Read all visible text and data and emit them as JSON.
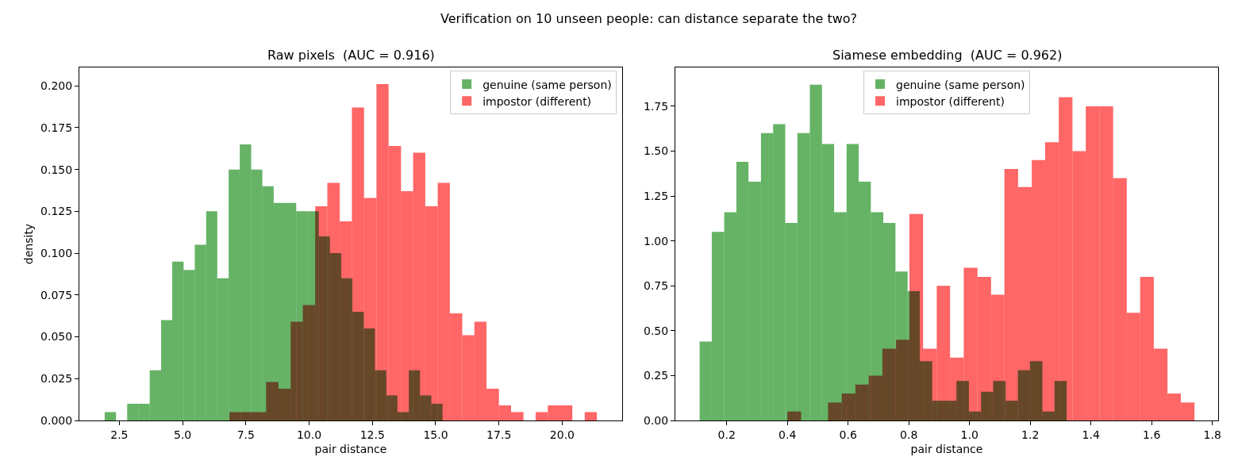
{
  "chart_data": [
    {
      "type": "histogram",
      "title": "Raw pixels  (AUC = 0.916)",
      "xlabel": "pair distance",
      "ylabel": "density",
      "annotations": [
        "Verification on 10 unseen people: can distance separate the two?"
      ],
      "bins": [
        1.92,
        2.37,
        2.81,
        3.26,
        3.7,
        4.15,
        4.59,
        5.04,
        5.48,
        5.93,
        6.37,
        6.82,
        7.26,
        7.71,
        8.15,
        8.6,
        9.04,
        9.49,
        9.93,
        10.38,
        10.82,
        11.27,
        11.71,
        12.16,
        12.6,
        13.05,
        13.49,
        13.94,
        14.38,
        14.83,
        15.27
      ],
      "series": [
        {
          "name": "genuine (same person)",
          "color": "#66b366",
          "values": [
            0.005,
            0,
            0.01,
            0.01,
            0.03,
            0.06,
            0.095,
            0.09,
            0.105,
            0.125,
            0.085,
            0.15,
            0.165,
            0.15,
            0.14,
            0.13,
            0.13,
            0.125,
            0.125,
            0.11,
            0.1,
            0.085,
            0.065,
            0.055,
            0.03,
            0.015,
            0.005,
            0.03,
            0.015,
            0.01
          ]
        },
        {
          "name": "impostor (different)",
          "color": "#ff6666",
          "bins": [
            6.85,
            7.33,
            7.82,
            8.3,
            8.79,
            9.27,
            9.75,
            10.24,
            10.72,
            11.21,
            11.69,
            12.17,
            12.66,
            13.14,
            13.63,
            14.11,
            14.59,
            15.08,
            15.56,
            16.05,
            16.53,
            17.01,
            17.5,
            17.98,
            18.47,
            18.95,
            19.43,
            19.92,
            20.4,
            20.89,
            21.37
          ],
          "values": [
            0.005,
            0.005,
            0.005,
            0.023,
            0.019,
            0.059,
            0.069,
            0.128,
            0.142,
            0.119,
            0.187,
            0.133,
            0.201,
            0.164,
            0.137,
            0.16,
            0.128,
            0.142,
            0.064,
            0.051,
            0.059,
            0.019,
            0.009,
            0.005,
            0,
            0.005,
            0.009,
            0.009,
            0,
            0.005
          ]
        }
      ],
      "xlim": [
        0.92,
        22.37
      ],
      "ylim": [
        0,
        0.211
      ],
      "xticks": [
        {
          "value": 2.5,
          "label": "2.5"
        },
        {
          "value": 5,
          "label": "5.0"
        },
        {
          "value": 7.5,
          "label": "7.5"
        },
        {
          "value": 10,
          "label": "10.0"
        },
        {
          "value": 12.5,
          "label": "12.5"
        },
        {
          "value": 15,
          "label": "15.0"
        },
        {
          "value": 17.5,
          "label": "17.5"
        },
        {
          "value": 20,
          "label": "20.0"
        }
      ],
      "yticks": [
        {
          "value": 0,
          "label": "0.000"
        },
        {
          "value": 0.025,
          "label": "0.025"
        },
        {
          "value": 0.05,
          "label": "0.050"
        },
        {
          "value": 0.075,
          "label": "0.075"
        },
        {
          "value": 0.1,
          "label": "0.100"
        },
        {
          "value": 0.125,
          "label": "0.125"
        },
        {
          "value": 0.15,
          "label": "0.150"
        },
        {
          "value": 0.175,
          "label": "0.175"
        },
        {
          "value": 0.2,
          "label": "0.200"
        }
      ],
      "grid": false,
      "legend": "top right"
    },
    {
      "type": "histogram",
      "title": "Siamese embedding  (AUC = 0.962)",
      "xlabel": "pair distance",
      "bins": [
        0.111,
        0.151,
        0.192,
        0.232,
        0.272,
        0.313,
        0.353,
        0.393,
        0.433,
        0.474,
        0.514,
        0.554,
        0.595,
        0.635,
        0.675,
        0.716,
        0.756,
        0.796,
        0.836,
        0.877,
        0.917,
        0.957,
        0.998,
        1.038,
        1.078,
        1.119,
        1.159,
        1.199,
        1.24,
        1.28,
        1.32
      ],
      "series": [
        {
          "name": "genuine (same person)",
          "color": "#66b366",
          "values": [
            0.44,
            1.05,
            1.16,
            1.44,
            1.33,
            1.6,
            1.65,
            1.1,
            1.6,
            1.87,
            1.54,
            1.16,
            1.54,
            1.33,
            1.16,
            1.1,
            0.83,
            0.72,
            0.33,
            0.11,
            0.11,
            0.22,
            0.05,
            0.16,
            0.22,
            0.11,
            0.28,
            0.33,
            0.05,
            0.22
          ]
        },
        {
          "name": "impostor (different)",
          "color": "#ff6666",
          "bins": [
            0.4,
            0.445,
            0.489,
            0.534,
            0.579,
            0.624,
            0.668,
            0.713,
            0.758,
            0.802,
            0.847,
            0.892,
            0.936,
            0.981,
            1.026,
            1.071,
            1.115,
            1.16,
            1.205,
            1.249,
            1.294,
            1.339,
            1.383,
            1.428,
            1.473,
            1.518,
            1.562,
            1.607,
            1.652,
            1.696,
            1.741
          ],
          "values": [
            0.05,
            0,
            0,
            0.1,
            0.15,
            0.2,
            0.25,
            0.4,
            0.45,
            1.15,
            0.4,
            0.75,
            0.35,
            0.85,
            0.8,
            0.7,
            1.4,
            1.3,
            1.45,
            1.55,
            1.8,
            1.5,
            1.75,
            1.75,
            1.35,
            0.6,
            0.8,
            0.4,
            0.15,
            0.1
          ]
        }
      ],
      "xlim": [
        0.031,
        1.819
      ],
      "ylim": [
        0,
        1.966
      ],
      "xticks": [
        0.2,
        0.4,
        0.6,
        0.8,
        {
          "value": 1,
          "label": "1.0"
        },
        1.2,
        1.4,
        1.6,
        1.8
      ],
      "yticks": [
        {
          "value": 0,
          "label": "0.00"
        },
        {
          "value": 0.25,
          "label": "0.25"
        },
        {
          "value": 0.5,
          "label": "0.50"
        },
        {
          "value": 0.75,
          "label": "0.75"
        },
        {
          "value": 1,
          "label": "1.00"
        },
        {
          "value": 1.25,
          "label": "1.25"
        },
        {
          "value": 1.5,
          "label": "1.50"
        },
        {
          "value": 1.75,
          "label": "1.75"
        }
      ],
      "grid": false,
      "legend": "top"
    }
  ]
}
